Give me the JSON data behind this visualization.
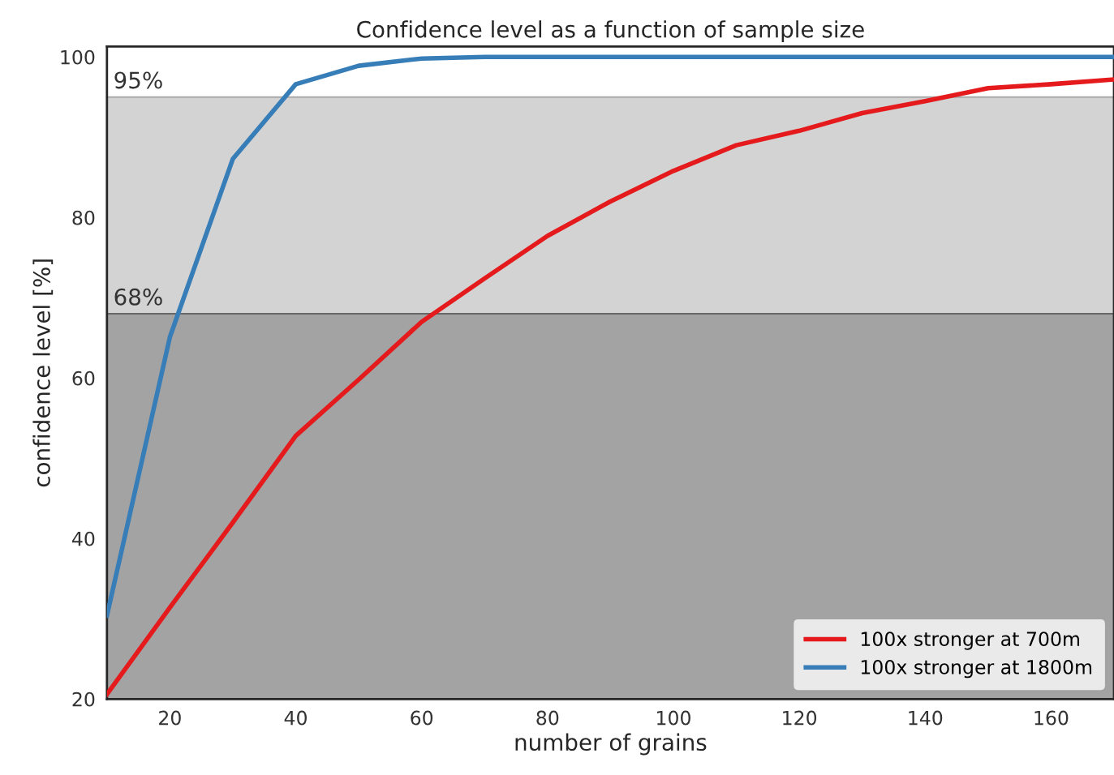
{
  "chart_data": {
    "type": "line",
    "title": "Confidence level as a function of sample size",
    "xlabel": "number of grains",
    "ylabel": "confidence level [%]",
    "x": [
      10,
      20,
      30,
      40,
      50,
      60,
      70,
      80,
      90,
      100,
      110,
      120,
      130,
      140,
      150,
      160,
      170
    ],
    "series": [
      {
        "name": "100x stronger at 700m",
        "color": "#e41a1c",
        "values": [
          20.6,
          31.4,
          42,
          52.8,
          59.8,
          67,
          72.4,
          77.7,
          82,
          85.8,
          89,
          90.8,
          93,
          94.5,
          96.1,
          96.6,
          97.2
        ]
      },
      {
        "name": "100x stronger at 1800m",
        "color": "#377eb8",
        "values": [
          30.4,
          65.1,
          87.3,
          96.6,
          98.9,
          99.8,
          100,
          100,
          100,
          100,
          100,
          100,
          100,
          100,
          100,
          100,
          100
        ]
      }
    ],
    "xlim": [
      10,
      170
    ],
    "xticks": [
      20,
      40,
      60,
      80,
      100,
      120,
      140,
      160
    ],
    "ylim": [
      20,
      101.3
    ],
    "yticks": [
      20,
      40,
      60,
      80,
      100
    ],
    "bands": [
      {
        "axis": "y",
        "from": 0,
        "to": 68,
        "color": "#a3a3a3"
      },
      {
        "axis": "y",
        "from": 68,
        "to": 95,
        "color": "#d3d3d3"
      }
    ],
    "ref_lines": [
      {
        "axis": "y",
        "value": 68,
        "label": "68%",
        "color": "#666666"
      },
      {
        "axis": "y",
        "value": 95,
        "label": "95%",
        "color": "#aaaaaa"
      }
    ],
    "grid": false,
    "legend": "bottom right",
    "line_style": "solid",
    "marker": "none"
  }
}
